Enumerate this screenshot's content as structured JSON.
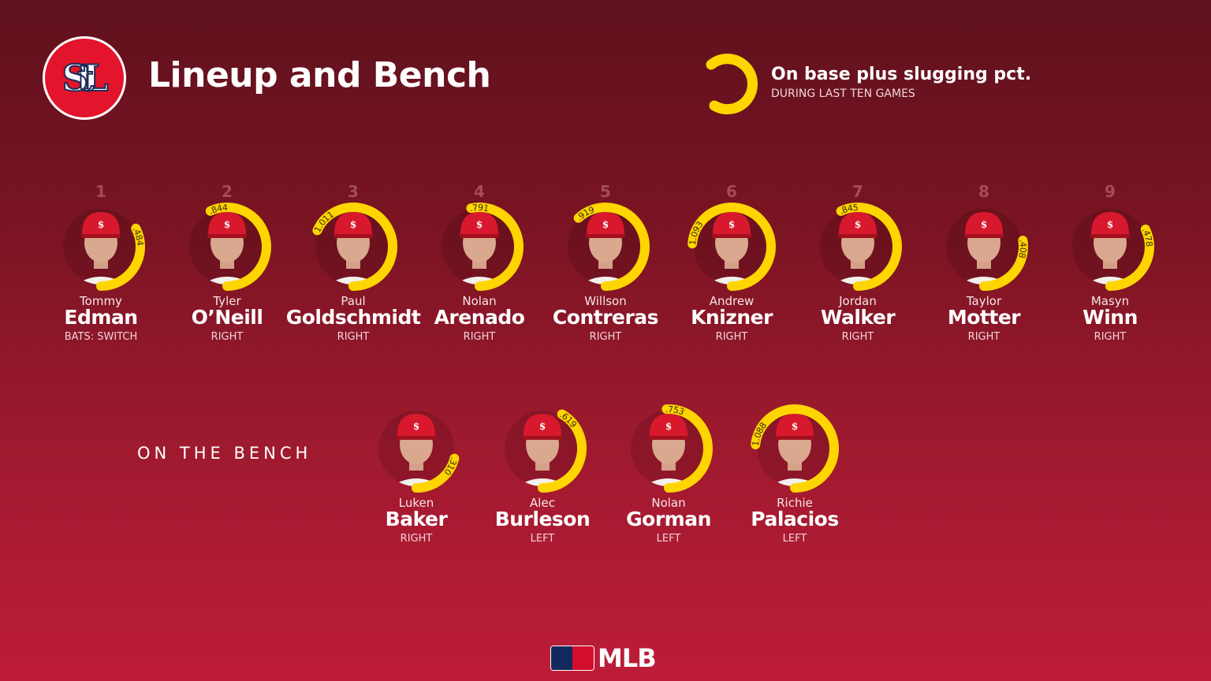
{
  "header": {
    "title": "Lineup and Bench",
    "team_logo_text": "STL"
  },
  "legend": {
    "title": "On base plus slugging pct.",
    "subtitle": "DURING LAST TEN GAMES",
    "arc_color": "#ffd500"
  },
  "bench_label": "ON THE BENCH",
  "footer": {
    "brand": "MLB"
  },
  "chart_data": {
    "type": "radial-bar",
    "title": "On base plus slugging pct.",
    "subtitle": "DURING LAST TEN GAMES",
    "lineup": [
      {
        "slot": "1",
        "first": "Tommy",
        "last": "Edman",
        "bats": "BATS: SWITCH",
        "ops": 0.484,
        "label": ".484"
      },
      {
        "slot": "2",
        "first": "Tyler",
        "last": "O’Neill",
        "bats": "RIGHT",
        "ops": 0.844,
        "label": ".844"
      },
      {
        "slot": "3",
        "first": "Paul",
        "last": "Goldschmidt",
        "bats": "RIGHT",
        "ops": 1.011,
        "label": "1.011"
      },
      {
        "slot": "4",
        "first": "Nolan",
        "last": "Arenado",
        "bats": "RIGHT",
        "ops": 0.791,
        "label": ".791"
      },
      {
        "slot": "5",
        "first": "Willson",
        "last": "Contreras",
        "bats": "RIGHT",
        "ops": 0.919,
        "label": ".919"
      },
      {
        "slot": "6",
        "first": "Andrew",
        "last": "Knizner",
        "bats": "RIGHT",
        "ops": 1.093,
        "label": "1.093"
      },
      {
        "slot": "7",
        "first": "Jordan",
        "last": "Walker",
        "bats": "RIGHT",
        "ops": 0.845,
        "label": ".845"
      },
      {
        "slot": "8",
        "first": "Taylor",
        "last": "Motter",
        "bats": "RIGHT",
        "ops": 0.408,
        "label": ".408"
      },
      {
        "slot": "9",
        "first": "Masyn",
        "last": "Winn",
        "bats": "RIGHT",
        "ops": 0.478,
        "label": ".478"
      }
    ],
    "bench": [
      {
        "first": "Luken",
        "last": "Baker",
        "bats": "RIGHT",
        "ops": 0.31,
        "label": ".310"
      },
      {
        "first": "Alec",
        "last": "Burleson",
        "bats": "LEFT",
        "ops": 0.619,
        "label": ".619"
      },
      {
        "first": "Nolan",
        "last": "Gorman",
        "bats": "LEFT",
        "ops": 0.753,
        "label": ".753"
      },
      {
        "first": "Richie",
        "last": "Palacios",
        "bats": "LEFT",
        "ops": 1.088,
        "label": "1.088"
      }
    ]
  }
}
